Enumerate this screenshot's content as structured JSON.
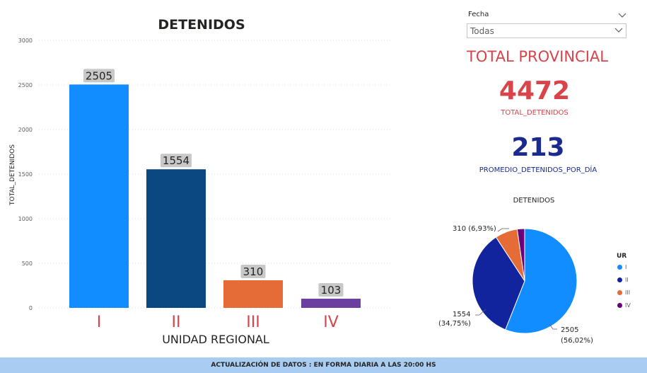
{
  "bar_chart": {
    "title": "DETENIDOS",
    "xlabel": "UNIDAD REGIONAL",
    "ylabel": "TOTAL_DETENIDOS",
    "yticks": [
      "0",
      "500",
      "1000",
      "1500",
      "2000",
      "2500",
      "3000"
    ]
  },
  "chart_data": [
    {
      "type": "bar",
      "title": "DETENIDOS",
      "xlabel": "UNIDAD REGIONAL",
      "ylabel": "TOTAL_DETENIDOS",
      "categories": [
        "I",
        "II",
        "III",
        "IV"
      ],
      "values": [
        2505,
        1554,
        310,
        103
      ],
      "data_labels": [
        "2505",
        "1554",
        "310",
        "103"
      ],
      "colors": [
        "#118dff",
        "#0b4780",
        "#e66c37",
        "#6b3fa0"
      ],
      "ylim": [
        0,
        3000
      ],
      "grid": true
    },
    {
      "type": "pie",
      "title": "DETENIDOS",
      "categories": [
        "I",
        "II",
        "III",
        "IV"
      ],
      "values": [
        2505,
        1554,
        310,
        103
      ],
      "colors": [
        "#118dff",
        "#12239e",
        "#e66c37",
        "#6b007b"
      ],
      "labels": [
        {
          "value": "2505",
          "pct": "(56,02%)"
        },
        {
          "value": "1554",
          "pct": "(34,75%)"
        },
        {
          "value": "310",
          "pct": "(6,93%)"
        }
      ],
      "legend": {
        "title": "UR",
        "items": [
          "I",
          "II",
          "III",
          "IV"
        ],
        "placement": "right"
      }
    }
  ],
  "slicer": {
    "label": "Fecha",
    "value": "Todas"
  },
  "kpi": {
    "heading": "TOTAL PROVINCIAL",
    "total_value": "4472",
    "total_label": "TOTAL_DETENIDOS",
    "avg_value": "213",
    "avg_label": "PROMEDIO_DETENIDOS_POR_DÍA"
  },
  "pie": {
    "title": "DETENIDOS",
    "label_iii": "310 (6,93%)",
    "label_ii_value": "1554",
    "label_ii_pct": "(34,75%)",
    "label_i_value": "2505",
    "label_i_pct": "(56,02%)"
  },
  "footer": {
    "text": "ACTUALIZACIÓN DE DATOS : EN FORMA DIARIA A LAS 20:00 HS"
  }
}
